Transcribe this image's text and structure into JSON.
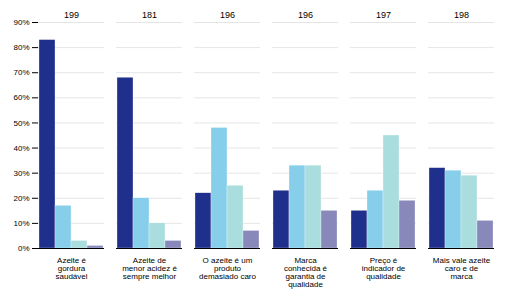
{
  "chart_data": {
    "type": "bar",
    "categories": [
      "Azeite é\ngordura\nsaudável",
      "Azeite de\nmenor acidez é\nsempre melhor",
      "O azeite é um\nproduto\ndemasiado caro",
      "Marca\nconhecida é\ngarantia de\nqualidade",
      "Preço é\nindicador de\nqualidade",
      "Mais vale azeite\ncaro e de\nmarca"
    ],
    "n": [
      199,
      181,
      196,
      196,
      197,
      198
    ],
    "series": [
      {
        "color": "#1f2f8c",
        "values": [
          83,
          68,
          22,
          23,
          15,
          32
        ]
      },
      {
        "color": "#87ceeb",
        "values": [
          17,
          20,
          48,
          33,
          23,
          31
        ]
      },
      {
        "color": "#aadddd",
        "values": [
          3,
          10,
          25,
          33,
          45,
          29
        ]
      },
      {
        "color": "#8888bb",
        "values": [
          1,
          3,
          7,
          15,
          19,
          11
        ]
      }
    ],
    "ylim": [
      0,
      90
    ],
    "yticks": [
      {
        "value": 0,
        "label": "0%"
      },
      {
        "value": 10,
        "label": "10%"
      },
      {
        "value": 20,
        "label": "20%"
      },
      {
        "value": 30,
        "label": "30%"
      },
      {
        "value": 40,
        "label": "40%"
      },
      {
        "value": 50,
        "label": "50%"
      },
      {
        "value": 60,
        "label": "60%"
      },
      {
        "value": 70,
        "label": "70%"
      },
      {
        "value": 80,
        "label": "80%"
      },
      {
        "value": 90,
        "label": "90%"
      }
    ],
    "grid": true
  }
}
